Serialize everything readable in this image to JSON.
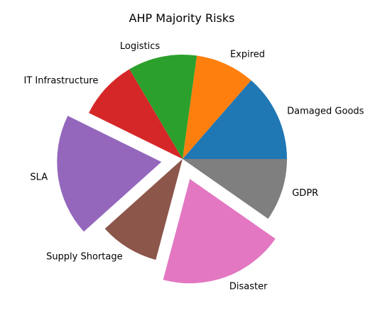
{
  "chart_data": {
    "type": "pie",
    "title": "AHP Majority Risks",
    "start_angle_deg": 0,
    "direction": "counterclockwise",
    "slices": [
      {
        "label": "Damaged Goods",
        "value": 14,
        "color": "#1f77b4",
        "exploded": false
      },
      {
        "label": "Expired",
        "value": 9.5,
        "color": "#ff7f0e",
        "exploded": false
      },
      {
        "label": "Logistics",
        "value": 11,
        "color": "#2ca02c",
        "exploded": false
      },
      {
        "label": "IT Infrastructure",
        "value": 9.5,
        "color": "#d62728",
        "exploded": false
      },
      {
        "label": "SLA",
        "value": 19.5,
        "color": "#9467bd",
        "exploded": true
      },
      {
        "label": "Supply Shortage",
        "value": 9.5,
        "color": "#8c564b",
        "exploded": false
      },
      {
        "label": "Disaster",
        "value": 20,
        "color": "#e377c2",
        "exploded": true
      },
      {
        "label": "GDPR",
        "value": 10,
        "color": "#7f7f7f",
        "exploded": false
      }
    ]
  }
}
